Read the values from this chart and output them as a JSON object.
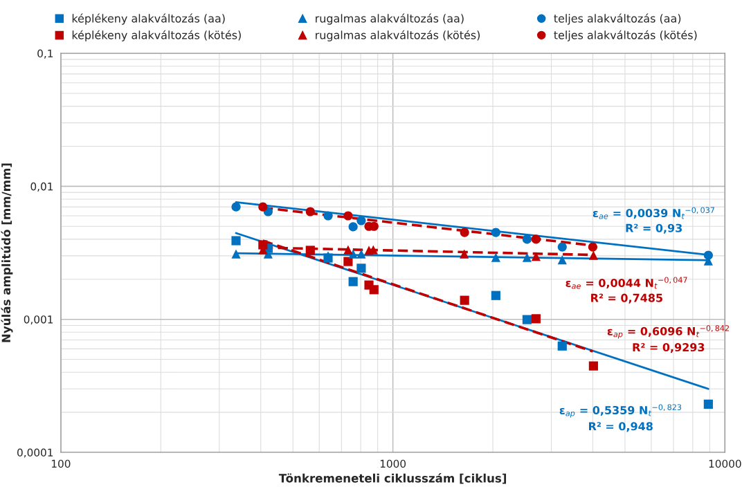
{
  "chart_data": {
    "type": "scatter",
    "log": "xy",
    "grid": true,
    "legend": "top",
    "xlabel": "Tönkremeneteli ciklusszám [ciklus]",
    "ylabel": "Nyúlás amplitúdó [mm/mm]",
    "xlim": [
      100,
      10000
    ],
    "xticks": [
      100,
      1000,
      10000
    ],
    "ylim": [
      0.0001,
      0.1
    ],
    "yticks": [
      {
        "value": 0.0001,
        "label": "0,0001"
      },
      {
        "value": 0.001,
        "label": "0,001"
      },
      {
        "value": 0.01,
        "label": "0,01"
      },
      {
        "value": 0.1,
        "label": "0,1"
      }
    ],
    "series": [
      {
        "name": "képlékeny alakváltozás (aa)",
        "color": "#0070c0",
        "marker": "square",
        "x": [
          337,
          421,
          638,
          759,
          803,
          2042,
          2535,
          3236,
          8913
        ],
        "values": [
          0.0039,
          0.00342,
          0.00289,
          0.00192,
          0.00242,
          0.00151,
          0.000995,
          0.00063,
          0.00023
        ]
      },
      {
        "name": "képlékeny alakváltozás (kötés)",
        "color": "#c00000",
        "marker": "square",
        "x": [
          406,
          564,
          733,
          847,
          877,
          1644,
          2698,
          4018
        ],
        "values": [
          0.00363,
          0.0033,
          0.00272,
          0.00181,
          0.00167,
          0.00139,
          0.00101,
          0.000446
        ]
      },
      {
        "name": "rugalmas alakváltozás (aa)",
        "color": "#0070c0",
        "marker": "triangle",
        "x": [
          337,
          421,
          638,
          759,
          803,
          2042,
          2535,
          3236,
          8913
        ],
        "values": [
          0.0031,
          0.0031,
          0.003,
          0.0031,
          0.0031,
          0.00292,
          0.00292,
          0.0028,
          0.00275
        ]
      },
      {
        "name": "rugalmas alakváltozás (kötés)",
        "color": "#c00000",
        "marker": "triangle",
        "x": [
          406,
          733,
          847,
          873,
          1640,
          2698,
          4018
        ],
        "values": [
          0.00333,
          0.00333,
          0.0033,
          0.00333,
          0.0031,
          0.00297,
          0.00303
        ]
      },
      {
        "name": "teljes alakváltozás (aa)",
        "color": "#0070c0",
        "marker": "circle",
        "x": [
          337,
          421,
          638,
          759,
          803,
          2042,
          2535,
          3236,
          8913
        ],
        "values": [
          0.007,
          0.00645,
          0.006,
          0.00496,
          0.00552,
          0.0045,
          0.004,
          0.0035,
          0.00303
        ]
      },
      {
        "name": "teljes alakváltozás (kötés)",
        "color": "#c00000",
        "marker": "circle",
        "x": [
          406,
          564,
          733,
          847,
          877,
          1644,
          2698,
          3999
        ],
        "values": [
          0.007,
          0.00645,
          0.006,
          0.005,
          0.005,
          0.0045,
          0.004,
          0.0035
        ]
      },
      {
        "type": "line",
        "color": "#0070c0",
        "line_style": "solid",
        "x": [
          337,
          8913
        ],
        "values": [
          0.0076,
          0.00305
        ]
      },
      {
        "type": "line",
        "color": "#0070c0",
        "line_style": "solid",
        "x": [
          337,
          8913
        ],
        "values": [
          0.00314,
          0.00278
        ]
      },
      {
        "type": "line",
        "color": "#0070c0",
        "line_style": "solid",
        "x": [
          337,
          8913
        ],
        "values": [
          0.00445,
          0.0003
        ]
      },
      {
        "type": "line",
        "color": "#c00000",
        "line_style": "dashed",
        "x": [
          406,
          3999
        ],
        "values": [
          0.0069,
          0.00359
        ]
      },
      {
        "type": "line",
        "color": "#c00000",
        "line_style": "dashed",
        "x": [
          406,
          3999
        ],
        "values": [
          0.00346,
          0.00305
        ]
      },
      {
        "type": "line",
        "color": "#c00000",
        "line_style": "dashed",
        "x": [
          406,
          3999
        ],
        "values": [
          0.0039,
          0.000574
        ]
      }
    ],
    "annotations": [
      "ε$_{ae}$ = 0,0039 N$_{t}$$^{−0,037}$\nR² = 0,93",
      "ε$_{ae}$ = 0,0044 N$_{t}$$^{−0,047}$\nR² = 0,7485",
      "ε$_{ap}$ = 0,6096 N$_{t}$$^{−0,842}$\nR² = 0,9293",
      "ε$_{ap}$ = 0,5359 N$_{t}$$^{−0,823}$\nR² = 0,948"
    ]
  }
}
